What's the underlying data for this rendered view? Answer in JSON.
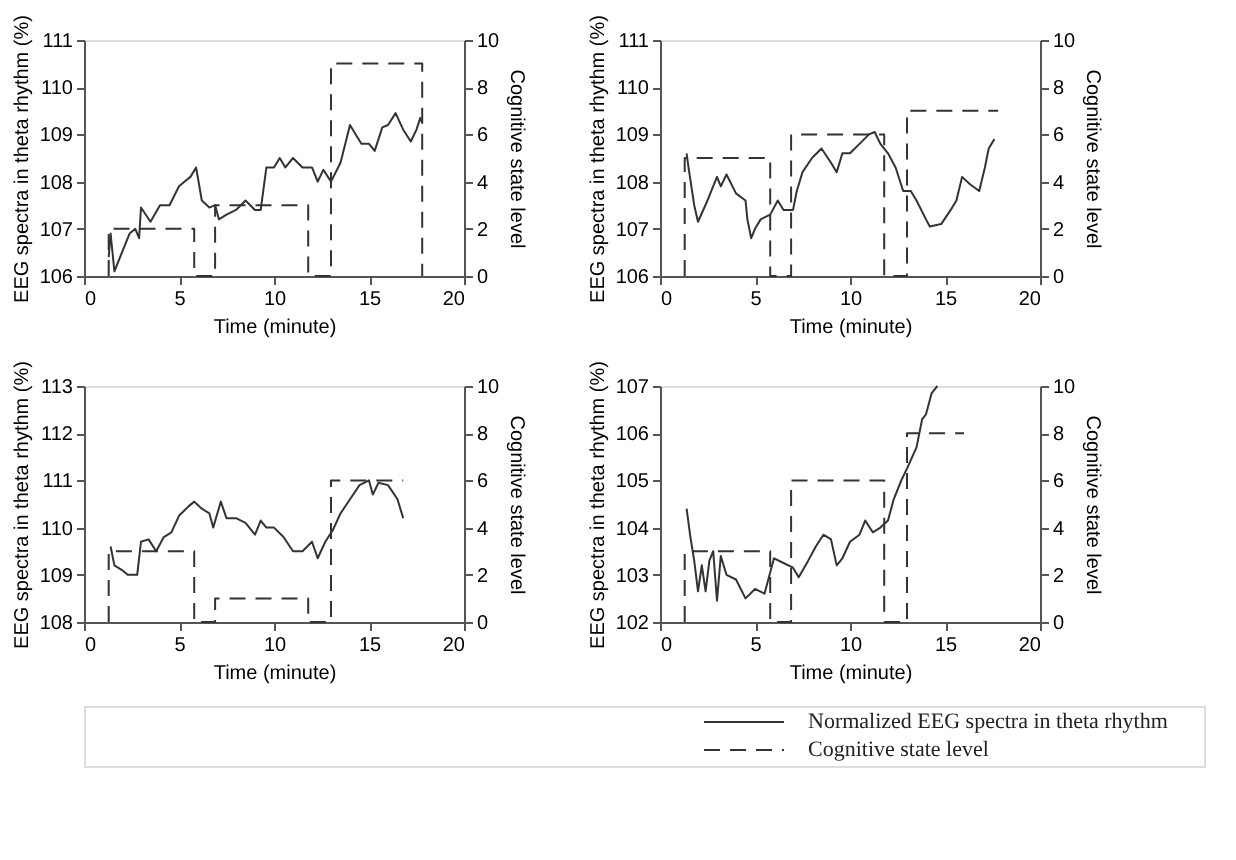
{
  "chart_data": [
    {
      "type": "line",
      "xlabel": "Time (minute)",
      "ylabel": "EEG spectra in theta rhythm (%)",
      "y2label": "Cognitive state level",
      "xlim": [
        0,
        20
      ],
      "xticks": [
        0,
        5,
        10,
        15,
        20
      ],
      "ylim": [
        106,
        111
      ],
      "yticks": [
        106,
        107,
        108,
        109,
        110,
        111
      ],
      "y2lim": [
        0,
        10
      ],
      "y2ticks": [
        0,
        2,
        4,
        6,
        8,
        10
      ],
      "series": [
        {
          "color": "#333333",
          "line_style": "solid",
          "x": [
            1.3,
            1.4,
            1.6,
            2,
            2.4,
            2.7,
            2.9,
            3,
            3.5,
            4,
            4.5,
            5,
            5.3,
            5.6,
            5.9,
            6.2,
            6.6,
            6.9,
            7.1,
            7.5,
            8,
            8.5,
            9,
            9.3,
            9.6,
            10,
            10.3,
            10.6,
            11,
            11.5,
            12,
            12.3,
            12.6,
            13,
            13.5,
            14,
            14.3,
            14.6,
            15,
            15.3,
            15.7,
            16,
            16.4,
            16.8,
            17.2,
            17.5,
            17.7,
            17.8
          ],
          "values": [
            106.4,
            106.9,
            106.1,
            106.5,
            106.9,
            107.0,
            106.8,
            107.45,
            107.15,
            107.5,
            107.5,
            107.9,
            108.0,
            108.1,
            108.3,
            107.6,
            107.45,
            107.5,
            107.2,
            107.3,
            107.4,
            107.6,
            107.4,
            107.4,
            108.3,
            108.3,
            108.5,
            108.3,
            108.5,
            108.3,
            108.3,
            108.0,
            108.25,
            108.0,
            108.4,
            109.2,
            109.0,
            108.8,
            108.8,
            108.65,
            109.15,
            109.2,
            109.45,
            109.1,
            108.85,
            109.1,
            109.35,
            109.25
          ]
        },
        {
          "axis": "y2",
          "color": "#333333",
          "line_style": "dashed",
          "x": [
            1.3,
            1.3,
            5.8,
            5.8,
            6.9,
            6.9,
            11.8,
            11.8,
            13,
            13,
            17.8,
            17.8
          ],
          "values": [
            0,
            2,
            2,
            0,
            0,
            3,
            3,
            0,
            0,
            9,
            9,
            0
          ]
        }
      ]
    },
    {
      "type": "line",
      "xlabel": "Time (minute)",
      "ylabel": "EEG spectra in theta rhythm (%)",
      "y2label": "Cognitive state level",
      "xlim": [
        0,
        20
      ],
      "xticks": [
        0,
        5,
        10,
        15,
        20
      ],
      "ylim": [
        106,
        111
      ],
      "yticks": [
        106,
        107,
        108,
        109,
        110,
        111
      ],
      "y2lim": [
        0,
        10
      ],
      "y2ticks": [
        0,
        2,
        4,
        6,
        8,
        10
      ],
      "series": [
        {
          "color": "#333333",
          "line_style": "solid",
          "x": [
            1.4,
            1.5,
            1.8,
            2,
            2.5,
            3,
            3.2,
            3.5,
            4,
            4.5,
            4.6,
            4.8,
            5,
            5.3,
            5.8,
            6.2,
            6.5,
            7,
            7.2,
            7.5,
            8,
            8.5,
            9,
            9.3,
            9.6,
            10,
            10.5,
            11,
            11.3,
            11.6,
            12,
            12.4,
            12.8,
            13.2,
            13.5,
            14,
            14.2,
            14.8,
            15.3,
            15.6,
            15.9,
            16.3,
            16.8,
            17.1,
            17.3,
            17.6
          ],
          "values": [
            108.6,
            108.3,
            107.5,
            107.15,
            107.6,
            108.1,
            107.9,
            108.15,
            107.75,
            107.6,
            107.2,
            106.8,
            107.0,
            107.2,
            107.3,
            107.6,
            107.4,
            107.4,
            107.8,
            108.2,
            108.5,
            108.7,
            108.4,
            108.2,
            108.6,
            108.6,
            108.8,
            109.0,
            109.05,
            108.8,
            108.6,
            108.3,
            107.8,
            107.8,
            107.6,
            107.2,
            107.05,
            107.1,
            107.4,
            107.6,
            108.1,
            107.95,
            107.8,
            108.3,
            108.7,
            108.9
          ]
        },
        {
          "axis": "y2",
          "color": "#333333",
          "line_style": "dashed",
          "x": [
            1.3,
            1.3,
            5.8,
            5.8,
            6.9,
            6.9,
            11.8,
            11.8,
            13,
            13,
            17.8
          ],
          "values": [
            0,
            5,
            5,
            0,
            0,
            6,
            6,
            0,
            0,
            7,
            7
          ]
        }
      ]
    },
    {
      "type": "line",
      "xlabel": "Time (minute)",
      "ylabel": "EEG spectra in theta rhythm (%)",
      "y2label": "Cognitive state level",
      "xlim": [
        0,
        20
      ],
      "xticks": [
        0,
        5,
        10,
        15,
        20
      ],
      "ylim": [
        108,
        113
      ],
      "yticks": [
        108,
        109,
        110,
        111,
        112,
        113
      ],
      "y2lim": [
        0,
        10
      ],
      "y2ticks": [
        0,
        2,
        4,
        6,
        8,
        10
      ],
      "series": [
        {
          "color": "#333333",
          "line_style": "solid",
          "x": [
            1.4,
            1.6,
            2,
            2.3,
            2.8,
            3,
            3.4,
            3.8,
            4.2,
            4.6,
            5,
            5.5,
            5.8,
            6.2,
            6.6,
            6.8,
            7.2,
            7.5,
            8,
            8.5,
            9,
            9.3,
            9.6,
            10,
            10.5,
            11,
            11.5,
            12,
            12.3,
            12.7,
            13.1,
            13.5,
            14,
            14.5,
            15,
            15.2,
            15.5,
            16,
            16.5,
            16.8
          ],
          "values": [
            109.6,
            109.2,
            109.1,
            109.0,
            109.0,
            109.7,
            109.75,
            109.5,
            109.8,
            109.9,
            110.25,
            110.45,
            110.55,
            110.4,
            110.3,
            110.0,
            110.55,
            110.2,
            110.2,
            110.1,
            109.85,
            110.15,
            110.0,
            110.0,
            109.8,
            109.5,
            109.5,
            109.7,
            109.35,
            109.7,
            109.95,
            110.3,
            110.6,
            110.9,
            111.0,
            110.7,
            110.95,
            110.9,
            110.6,
            110.2
          ]
        },
        {
          "axis": "y2",
          "color": "#333333",
          "line_style": "dashed",
          "x": [
            1.3,
            1.3,
            5.8,
            5.8,
            6.9,
            6.9,
            11.8,
            11.8,
            13,
            13,
            16.8
          ],
          "values": [
            0,
            3,
            3,
            0,
            0,
            1,
            1,
            0,
            0,
            6,
            6
          ]
        }
      ]
    },
    {
      "type": "line",
      "xlabel": "Time (minute)",
      "ylabel": "EEG spectra in theta rhythm (%)",
      "y2label": "Cognitive state level",
      "xlim": [
        0,
        20
      ],
      "xticks": [
        0,
        5,
        10,
        15,
        20
      ],
      "ylim": [
        102,
        107
      ],
      "yticks": [
        102,
        103,
        104,
        105,
        106,
        107
      ],
      "y2lim": [
        0,
        10
      ],
      "y2ticks": [
        0,
        2,
        4,
        6,
        8,
        10
      ],
      "legend": "bottom right",
      "series": [
        {
          "name": "Normalized EEG spectra in theta rhythm",
          "color": "#333333",
          "line_style": "solid",
          "x": [
            1.4,
            1.6,
            1.8,
            2,
            2.2,
            2.4,
            2.6,
            2.8,
            3,
            3.2,
            3.5,
            4,
            4.5,
            5,
            5.5,
            5.7,
            6,
            6.5,
            7,
            7.3,
            7.8,
            8.2,
            8.6,
            9,
            9.3,
            9.6,
            10,
            10.5,
            10.8,
            11.2,
            11.6,
            12,
            12.3,
            12.7,
            13,
            13.5,
            13.8,
            14,
            14.3,
            14.6
          ],
          "values": [
            104.4,
            103.8,
            103.3,
            102.65,
            103.2,
            102.65,
            103.3,
            103.5,
            102.45,
            103.4,
            103.0,
            102.9,
            102.5,
            102.7,
            102.6,
            102.9,
            103.35,
            103.25,
            103.15,
            102.95,
            103.3,
            103.6,
            103.85,
            103.75,
            103.2,
            103.35,
            103.7,
            103.85,
            104.15,
            103.9,
            104.0,
            104.15,
            104.6,
            105.0,
            105.25,
            105.7,
            106.3,
            106.4,
            106.85,
            107.0
          ]
        },
        {
          "axis": "y2",
          "name": "Cognitive state level",
          "color": "#333333",
          "line_style": "dashed",
          "x": [
            1.3,
            1.3,
            5.8,
            5.8,
            6.9,
            6.9,
            11.8,
            11.8,
            13,
            13,
            16
          ],
          "values": [
            0,
            3,
            3,
            0,
            0,
            6,
            6,
            0,
            0,
            8,
            8
          ]
        }
      ]
    }
  ]
}
